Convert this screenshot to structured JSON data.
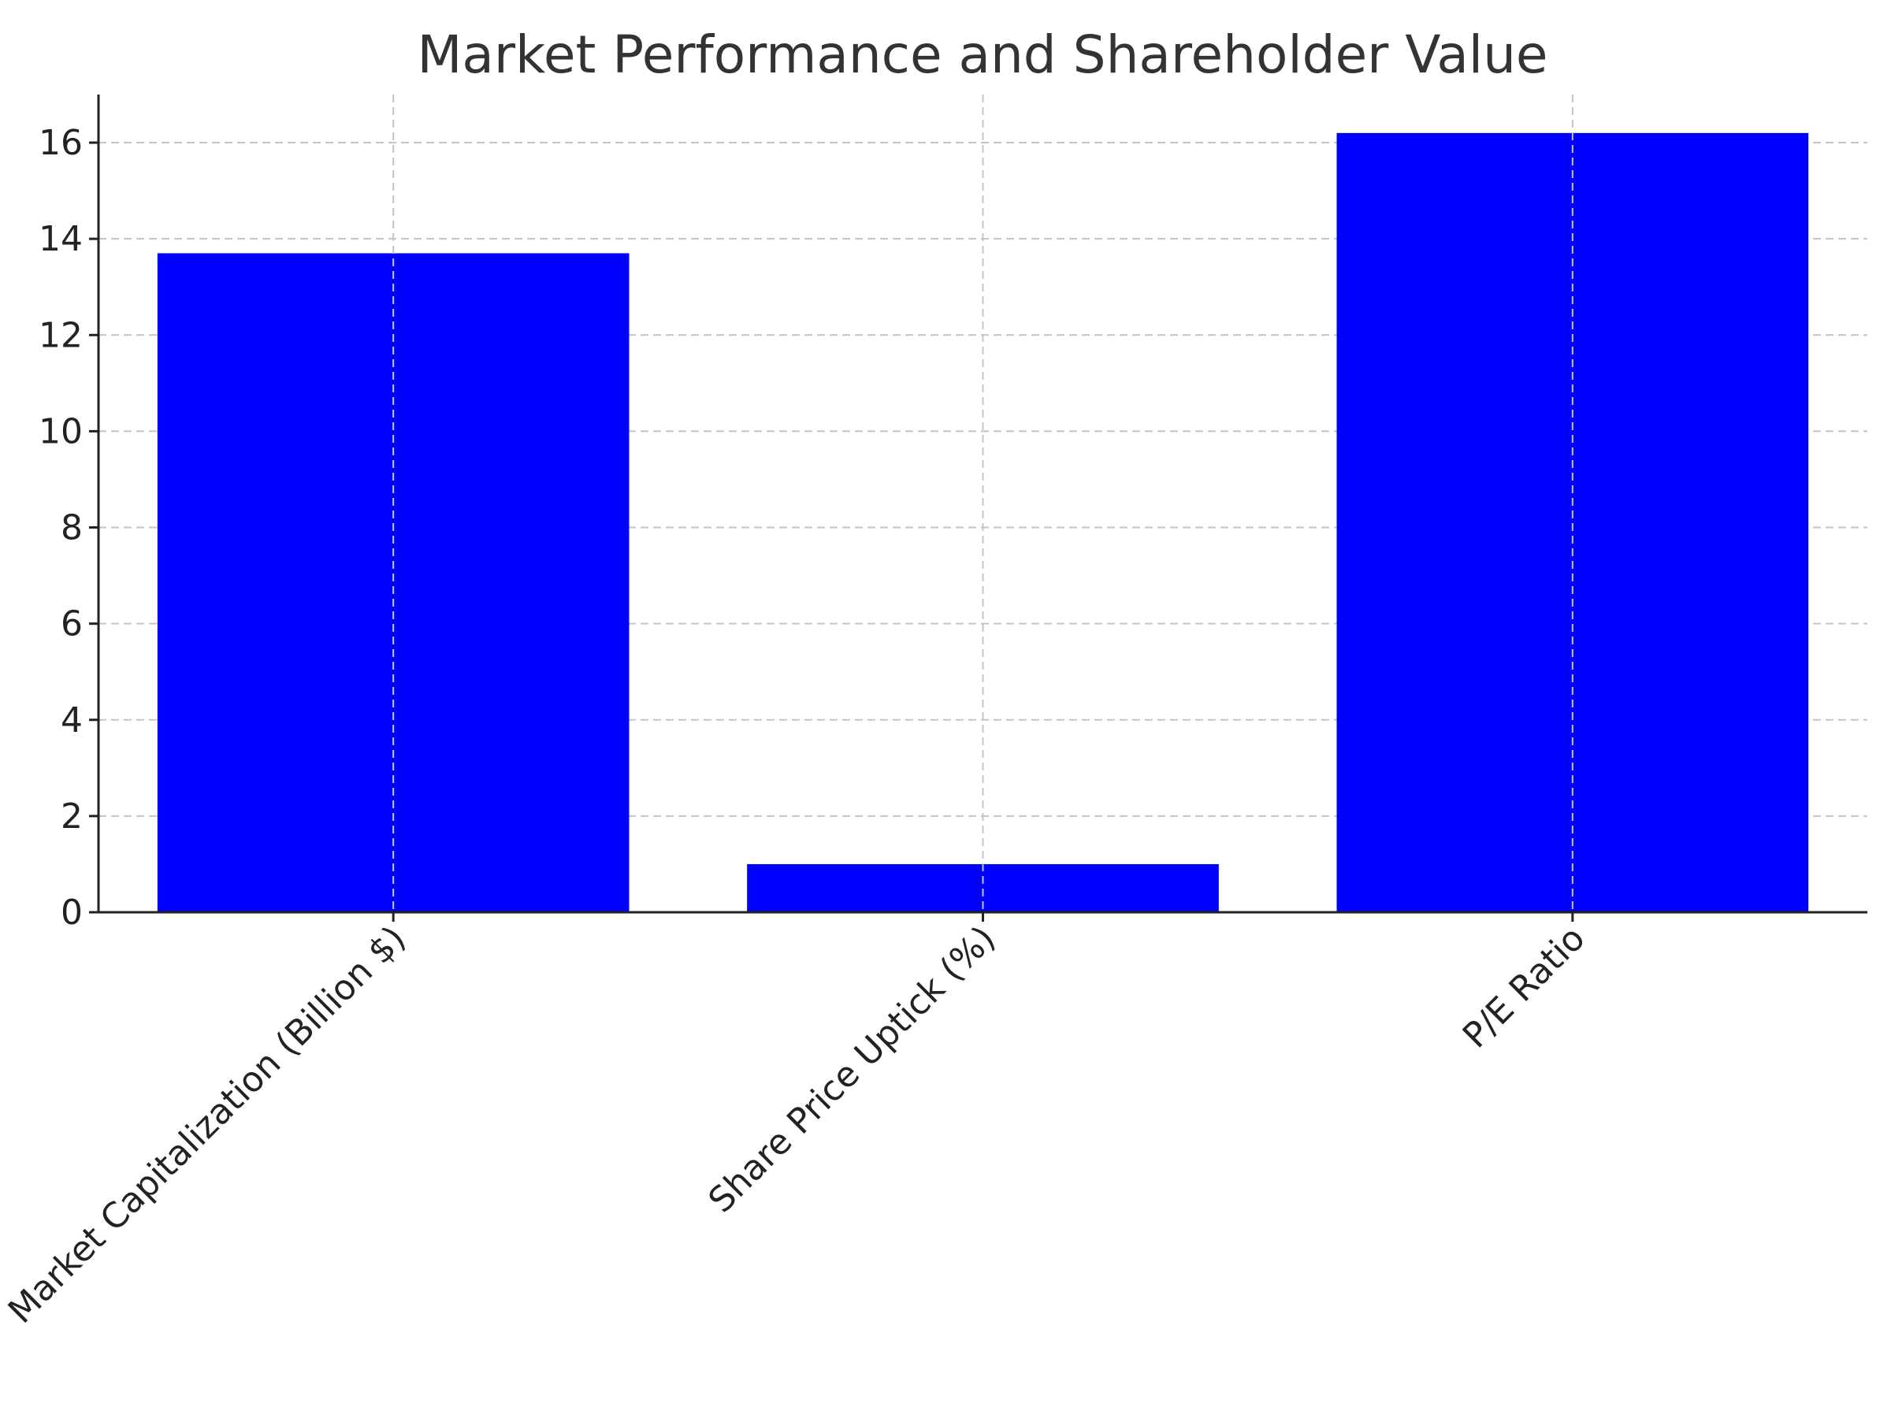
{
  "chart_data": {
    "type": "bar",
    "title": "Market Performance and Shareholder Value",
    "categories": [
      "Market Capitalization (Billion $)",
      "Share Price Uptick (%)",
      "P/E Ratio"
    ],
    "values": [
      13.7,
      1.0,
      16.2
    ],
    "xlabel": "",
    "ylabel": "",
    "ylim": [
      0,
      17
    ],
    "yticks": [
      0,
      2,
      4,
      6,
      8,
      10,
      12,
      14,
      16
    ],
    "grid": true,
    "bar_color": "#0000ff"
  }
}
